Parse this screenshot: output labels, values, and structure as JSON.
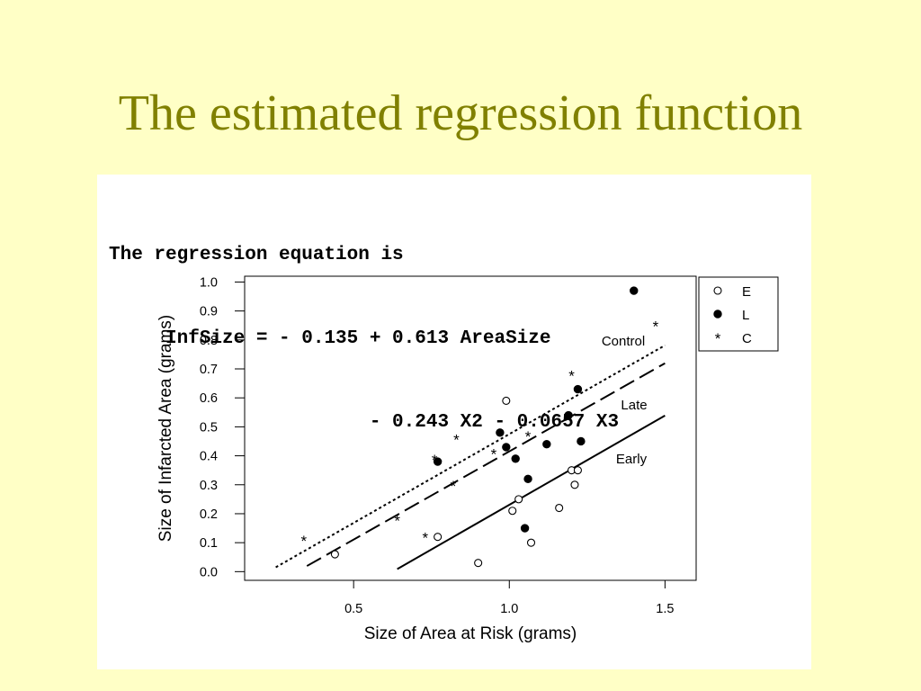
{
  "slide": {
    "title": "The estimated regression function"
  },
  "equation": {
    "lines": [
      "The regression equation is",
      "     InfSize = - 0.135 + 0.613 AreaSize",
      "                       - 0.243 X2 - 0.0657 X3"
    ]
  },
  "chart_data": {
    "type": "scatter",
    "xlabel": "Size of Area at Risk (grams)",
    "ylabel": "Size of Infarcted Area (grams)",
    "xlim": [
      0.15,
      1.6
    ],
    "ylim": [
      -0.03,
      1.02
    ],
    "xticks": [
      0.5,
      1.0,
      1.5
    ],
    "xtick_labels": [
      "0.5",
      "1.0",
      "1.5"
    ],
    "yticks": [
      0.0,
      0.1,
      0.2,
      0.3,
      0.4,
      0.5,
      0.6,
      0.7,
      0.8,
      0.9,
      1.0
    ],
    "ytick_labels": [
      "0.0",
      "0.1",
      "0.2",
      "0.3",
      "0.4",
      "0.5",
      "0.6",
      "0.7",
      "0.8",
      "0.9",
      "1.0"
    ],
    "grid": false,
    "legend_position": "outside-right-top",
    "series": [
      {
        "name": "E",
        "marker": "open-circle",
        "points": [
          [
            0.44,
            0.06
          ],
          [
            0.77,
            0.12
          ],
          [
            0.9,
            0.03
          ],
          [
            0.99,
            0.59
          ],
          [
            1.01,
            0.21
          ],
          [
            1.03,
            0.25
          ],
          [
            1.07,
            0.1
          ],
          [
            1.16,
            0.22
          ],
          [
            1.2,
            0.35
          ],
          [
            1.22,
            0.35
          ],
          [
            1.21,
            0.3
          ]
        ]
      },
      {
        "name": "L",
        "marker": "filled-circle",
        "points": [
          [
            0.77,
            0.38
          ],
          [
            0.97,
            0.48
          ],
          [
            0.99,
            0.43
          ],
          [
            1.02,
            0.39
          ],
          [
            1.05,
            0.15
          ],
          [
            1.06,
            0.32
          ],
          [
            1.12,
            0.44
          ],
          [
            1.19,
            0.54
          ],
          [
            1.22,
            0.63
          ],
          [
            1.23,
            0.45
          ],
          [
            1.4,
            0.97
          ]
        ]
      },
      {
        "name": "C",
        "marker": "asterisk",
        "points": [
          [
            0.34,
            0.11
          ],
          [
            0.64,
            0.18
          ],
          [
            0.73,
            0.12
          ],
          [
            0.76,
            0.39
          ],
          [
            0.82,
            0.3
          ],
          [
            0.83,
            0.46
          ],
          [
            0.95,
            0.41
          ],
          [
            1.06,
            0.47
          ],
          [
            1.2,
            0.68
          ],
          [
            1.47,
            0.85
          ]
        ]
      }
    ],
    "lines": [
      {
        "label": "Control",
        "style": "dotted",
        "x": [
          0.25,
          1.5
        ],
        "y": [
          0.015,
          0.7815
        ]
      },
      {
        "label": "Late",
        "style": "long-dash",
        "x": [
          0.35,
          1.5
        ],
        "y": [
          0.0195,
          0.7195
        ]
      },
      {
        "label": "Early",
        "style": "solid",
        "x": [
          0.64,
          1.5
        ],
        "y": [
          0.0089,
          0.5389
        ]
      }
    ]
  }
}
